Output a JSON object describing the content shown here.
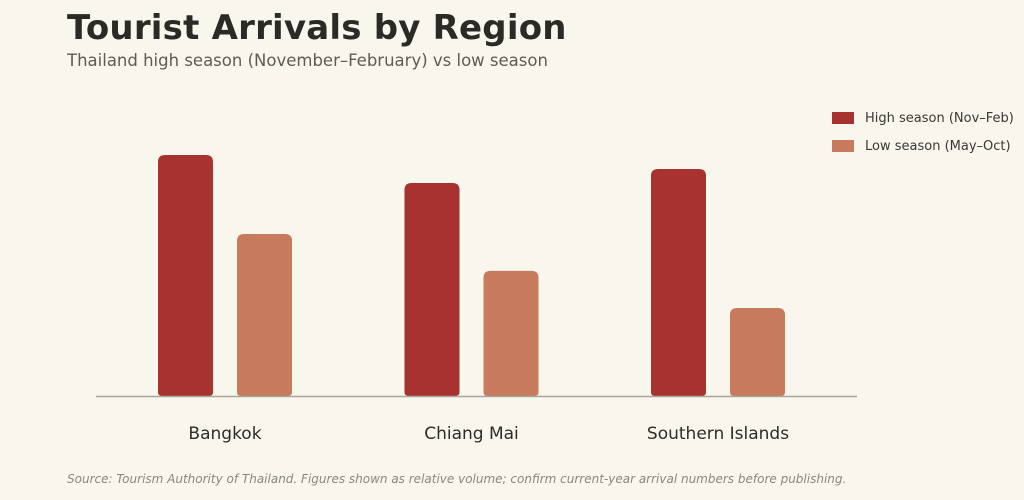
{
  "header": {
    "title": "Tourist Arrivals by Region",
    "subtitle": "Thailand high season (November–February) vs low season"
  },
  "footer": {
    "source": "Source: Tourism Authority of Thailand. Figures shown as relative volume; confirm current-year arrival numbers before publishing."
  },
  "colors": {
    "high": "#a8322f",
    "low": "#c87a5c",
    "axis": "#a9a59d",
    "background": "#f9f6ee"
  },
  "chart_data": {
    "type": "bar",
    "title": "Tourist Arrivals by Region",
    "subtitle": "Thailand high season (November–February) vs low season",
    "categories": [
      "Bangkok",
      "Chiang Mai",
      "Southern Islands"
    ],
    "series": [
      {
        "name": "High season (Nov–Feb)",
        "values": [
          100,
          88.4,
          94.2
        ],
        "color": "#a8322f"
      },
      {
        "name": "Low season (May–Oct)",
        "values": [
          67.2,
          51.9,
          36.5
        ],
        "color": "#c87a5c"
      }
    ],
    "ylim": [
      0,
      100
    ],
    "y_axis_shown": false,
    "grid": false,
    "legend_position": "top-right"
  }
}
